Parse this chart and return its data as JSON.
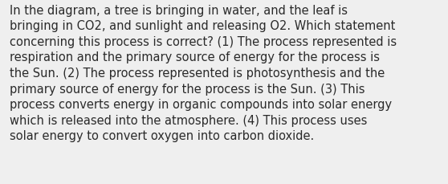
{
  "lines": [
    "In the diagram, a tree is bringing in water, and the leaf is",
    "bringing in CO2, and sunlight and releasing O2. Which statement",
    "concerning this process is correct? (1) The process represented is",
    "respiration and the primary source of energy for the process is",
    "the Sun. (2) The process represented is photosynthesis and the",
    "primary source of energy for the process is the Sun. (3) This",
    "process converts energy in organic compounds into solar energy",
    "which is released into the atmosphere. (4) This process uses",
    "solar energy to convert oxygen into carbon dioxide."
  ],
  "background_color": "#efefef",
  "text_color": "#2a2a2a",
  "font_size": 10.5,
  "font_family": "DejaVu Sans",
  "fig_width": 5.58,
  "fig_height": 2.3,
  "dpi": 100
}
